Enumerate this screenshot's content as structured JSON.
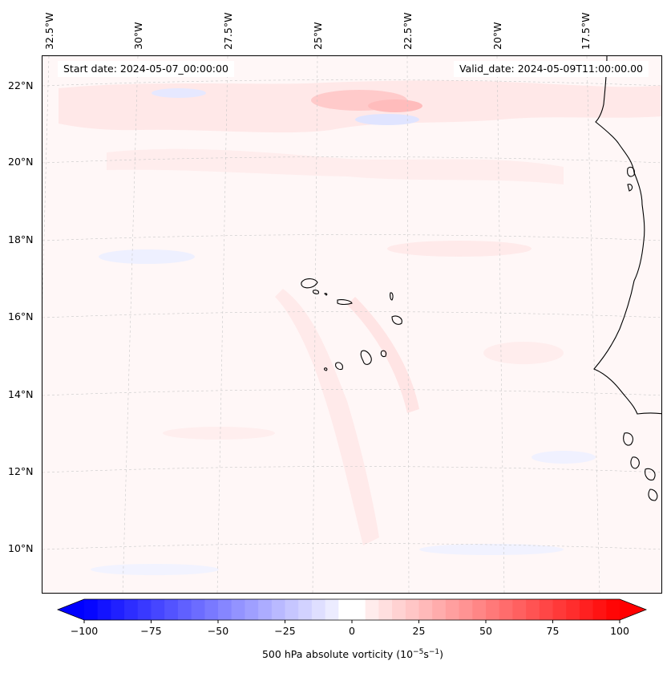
{
  "header": {
    "start_date": "Start date: 2024-05-07_00:00:00",
    "valid_date": "Valid_date: 2024-05-09T11:00:00.00"
  },
  "axes": {
    "longitudes": [
      "32.5°W",
      "30°W",
      "27.5°W",
      "25°W",
      "22.5°W",
      "20°W",
      "17.5°W"
    ],
    "latitudes": [
      "22°N",
      "20°N",
      "18°N",
      "16°N",
      "14°N",
      "12°N",
      "10°N"
    ]
  },
  "colorbar": {
    "ticks": [
      "−100",
      "−75",
      "−50",
      "−25",
      "0",
      "25",
      "50",
      "75",
      "100"
    ],
    "label_prefix": "500 hPa absolute vorticity (10",
    "label_exp1": "−5",
    "label_mid": "s",
    "label_exp2": "−1",
    "label_suffix": ")",
    "min": -100,
    "max": 100,
    "step": 5,
    "colors": {
      "negative": "#0000ff",
      "zero": "#ffffff",
      "positive": "#ff0000"
    }
  },
  "colors": {
    "background_field": "#fff7f7",
    "light_positive": "#ffe6e6",
    "strong_positive": "#ffc8c8",
    "light_negative": "#e8ebff",
    "coast": "#000000",
    "grid": "#c8c8c8"
  }
}
